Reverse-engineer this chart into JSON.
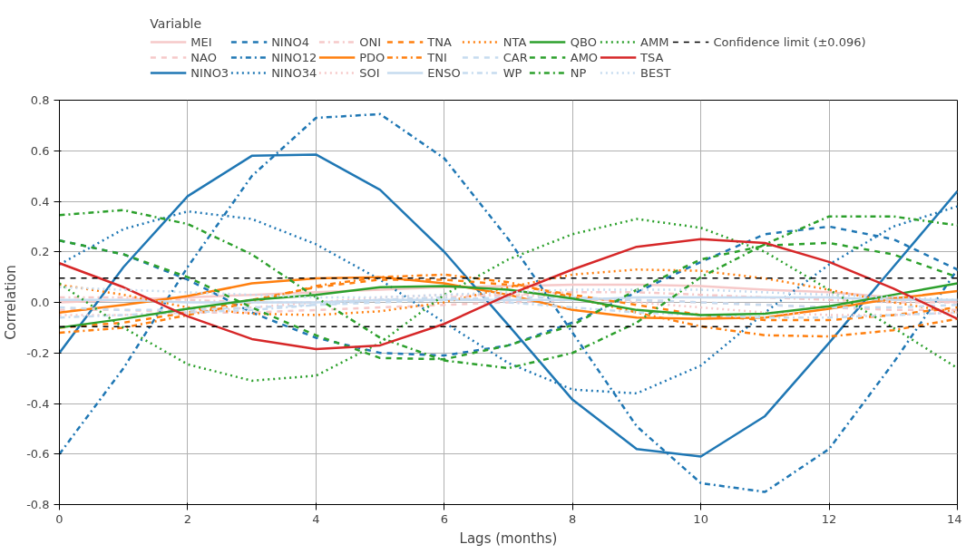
{
  "chart_data": {
    "type": "line",
    "xlabel": "Lags (months)",
    "ylabel": "Correlation",
    "legend_title": "Variable",
    "legend": "top",
    "grid": true,
    "x": [
      0,
      1,
      2,
      3,
      4,
      5,
      6,
      7,
      8,
      9,
      10,
      11,
      12,
      13,
      14
    ],
    "xlim": [
      0,
      14
    ],
    "xticks": [
      0,
      2,
      4,
      6,
      8,
      10,
      12,
      14
    ],
    "ylim": [
      -0.8,
      0.8
    ],
    "yticks": [
      -0.8,
      -0.6,
      -0.4,
      -0.2,
      {
        "value": 0,
        "label": "0.0"
      },
      0.2,
      0.4,
      0.6,
      0.8
    ],
    "series": [
      {
        "name": "MEI",
        "color": "#f6c9c9",
        "line_style": "solid",
        "values": [
          0.0,
          0.01,
          0.02,
          0.03,
          0.04,
          0.05,
          0.06,
          0.065,
          0.07,
          0.07,
          0.065,
          0.05,
          0.04,
          0.02,
          0.0
        ]
      },
      {
        "name": "NAO",
        "color": "#f6c9c9",
        "line_style": "dashed",
        "values": [
          -0.03,
          -0.03,
          -0.04,
          -0.04,
          -0.03,
          -0.02,
          -0.01,
          0.0,
          0.01,
          0.01,
          0.0,
          -0.01,
          -0.02,
          -0.03,
          -0.03
        ]
      },
      {
        "name": "NINO3",
        "color": "#1f77b4",
        "line_style": "solid",
        "values": [
          -0.2,
          0.14,
          0.42,
          0.58,
          0.585,
          0.445,
          0.2,
          -0.09,
          -0.385,
          -0.58,
          -0.61,
          -0.45,
          -0.16,
          0.14,
          0.44
        ]
      },
      {
        "name": "NINO4",
        "color": "#1f77b4",
        "line_style": "dashed",
        "values": [
          0.245,
          0.19,
          0.09,
          -0.04,
          -0.14,
          -0.2,
          -0.21,
          -0.17,
          -0.08,
          0.04,
          0.16,
          0.27,
          0.3,
          0.25,
          0.13
        ]
      },
      {
        "name": "NINO12",
        "color": "#1f77b4",
        "line_style": "dashdot",
        "values": [
          -0.6,
          -0.26,
          0.14,
          0.5,
          0.73,
          0.745,
          0.57,
          0.25,
          -0.12,
          -0.49,
          -0.715,
          -0.75,
          -0.58,
          -0.24,
          0.13
        ]
      },
      {
        "name": "NINO34",
        "color": "#1f77b4",
        "line_style": "dotted",
        "values": [
          0.15,
          0.29,
          0.36,
          0.33,
          0.23,
          0.09,
          -0.08,
          -0.24,
          -0.345,
          -0.36,
          -0.25,
          -0.04,
          0.15,
          0.3,
          0.38
        ]
      },
      {
        "name": "ONI",
        "color": "#f6c9c9",
        "line_style": "dashdot",
        "values": [
          0.02,
          0.02,
          0.01,
          0.0,
          0.0,
          0.01,
          0.02,
          0.03,
          0.04,
          0.04,
          0.03,
          0.02,
          0.01,
          0.0,
          0.0
        ]
      },
      {
        "name": "PDO",
        "color": "#ff7f0e",
        "line_style": "solid",
        "values": [
          -0.04,
          -0.01,
          0.025,
          0.075,
          0.095,
          0.1,
          0.075,
          0.03,
          -0.03,
          -0.06,
          -0.065,
          -0.06,
          -0.025,
          0.015,
          0.045
        ]
      },
      {
        "name": "SOI",
        "color": "#f6c9c9",
        "line_style": "dotted",
        "values": [
          -0.05,
          -0.05,
          -0.04,
          -0.02,
          0.0,
          0.02,
          0.03,
          0.03,
          0.02,
          0.0,
          -0.02,
          -0.04,
          -0.05,
          -0.05,
          -0.04
        ]
      },
      {
        "name": "TNA",
        "color": "#ff7f0e",
        "line_style": "dashed",
        "values": [
          -0.1,
          -0.08,
          -0.04,
          0.01,
          0.06,
          0.09,
          0.09,
          0.07,
          0.03,
          -0.01,
          -0.05,
          -0.07,
          -0.07,
          -0.05,
          -0.02
        ]
      },
      {
        "name": "TNI",
        "color": "#ff7f0e",
        "line_style": "dashdot",
        "values": [
          -0.12,
          -0.1,
          -0.05,
          0.0,
          0.065,
          0.1,
          0.11,
          0.08,
          0.02,
          -0.04,
          -0.095,
          -0.13,
          -0.135,
          -0.11,
          -0.065
        ]
      },
      {
        "name": "ENSO",
        "color": "#c6dbef",
        "line_style": "solid",
        "values": [
          0.01,
          0.01,
          0.0,
          0.0,
          0.0,
          0.01,
          0.01,
          0.01,
          0.01,
          0.02,
          0.02,
          0.02,
          0.02,
          0.01,
          0.01
        ]
      },
      {
        "name": "NTA",
        "color": "#ff7f0e",
        "line_style": "dotted",
        "values": [
          0.07,
          0.03,
          -0.02,
          -0.045,
          -0.05,
          -0.035,
          0.0,
          0.06,
          0.11,
          0.13,
          0.125,
          0.095,
          0.05,
          0.0,
          -0.04
        ]
      },
      {
        "name": "CAR",
        "color": "#c6dbef",
        "line_style": "dashed",
        "values": [
          -0.02,
          -0.03,
          -0.03,
          -0.02,
          -0.01,
          0.0,
          0.01,
          0.02,
          0.02,
          0.01,
          0.0,
          -0.01,
          -0.02,
          -0.02,
          -0.01
        ]
      },
      {
        "name": "WP",
        "color": "#c6dbef",
        "line_style": "dashdot",
        "values": [
          -0.06,
          -0.05,
          -0.04,
          -0.03,
          -0.01,
          0.01,
          0.02,
          0.0,
          -0.02,
          -0.04,
          -0.05,
          -0.06,
          -0.06,
          -0.05,
          -0.04
        ]
      },
      {
        "name": "QBO",
        "color": "#2ca02c",
        "line_style": "solid",
        "values": [
          -0.1,
          -0.065,
          -0.025,
          0.01,
          0.03,
          0.06,
          0.065,
          0.05,
          0.015,
          -0.03,
          -0.05,
          -0.045,
          -0.015,
          0.03,
          0.075
        ]
      },
      {
        "name": "AMO",
        "color": "#2ca02c",
        "line_style": "dashed",
        "values": [
          0.245,
          0.19,
          0.1,
          -0.02,
          -0.13,
          -0.22,
          -0.225,
          -0.17,
          -0.09,
          0.05,
          0.17,
          0.225,
          0.235,
          0.19,
          0.1
        ]
      },
      {
        "name": "NP",
        "color": "#2ca02c",
        "line_style": "dashdot",
        "values": [
          0.345,
          0.365,
          0.31,
          0.19,
          0.02,
          -0.14,
          -0.23,
          -0.26,
          -0.2,
          -0.08,
          0.1,
          0.23,
          0.34,
          0.34,
          0.305
        ]
      },
      {
        "name": "AMM",
        "color": "#2ca02c",
        "line_style": "dotted",
        "values": [
          0.075,
          -0.1,
          -0.245,
          -0.31,
          -0.29,
          -0.16,
          0.03,
          0.17,
          0.27,
          0.33,
          0.295,
          0.2,
          0.05,
          -0.1,
          -0.26
        ]
      },
      {
        "name": "TSA",
        "color": "#d62728",
        "line_style": "solid",
        "values": [
          0.155,
          0.06,
          -0.055,
          -0.145,
          -0.185,
          -0.17,
          -0.085,
          0.03,
          0.13,
          0.22,
          0.25,
          0.235,
          0.16,
          0.055,
          -0.065
        ]
      },
      {
        "name": "BEST",
        "color": "#c6dbef",
        "line_style": "dotted",
        "values": [
          0.06,
          0.05,
          0.04,
          0.03,
          0.02,
          0.02,
          0.03,
          0.04,
          0.05,
          0.05,
          0.05,
          0.04,
          0.03,
          0.02,
          0.01
        ]
      }
    ],
    "ref_lines": [
      {
        "axis": "y",
        "value": 0.096,
        "label": "Confidence limit (±0.096)",
        "color": "#000000",
        "line_style": "dashed"
      },
      {
        "axis": "y",
        "value": -0.096,
        "label": null,
        "color": "#000000",
        "line_style": "dashed"
      }
    ]
  }
}
